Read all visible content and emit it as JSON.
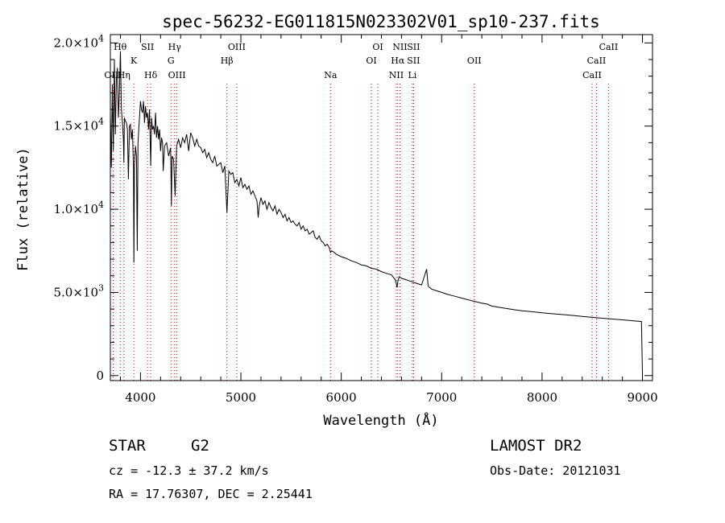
{
  "chart_data": {
    "type": "line",
    "title": "spec-56232-EG011815N023302V01_sp10-237.fits",
    "xlabel": "Wavelength (Å)",
    "ylabel": "Flux (relative)",
    "xlim": [
      3700,
      9100
    ],
    "ylim": [
      -300,
      20500
    ],
    "xticks": [
      {
        "value": 4000,
        "label": "4000"
      },
      {
        "value": 5000,
        "label": "5000"
      },
      {
        "value": 6000,
        "label": "6000"
      },
      {
        "value": 7000,
        "label": "7000"
      },
      {
        "value": 8000,
        "label": "8000"
      },
      {
        "value": 9000,
        "label": "9000"
      }
    ],
    "yticks": [
      {
        "value": 0,
        "label": "0",
        "exp": ""
      },
      {
        "value": 5000,
        "label": "5.0×10",
        "exp": "3"
      },
      {
        "value": 10000,
        "label": "1.0×10",
        "exp": "4"
      },
      {
        "value": 15000,
        "label": "1.5×10",
        "exp": "4"
      },
      {
        "value": 20000,
        "label": "2.0×10",
        "exp": "4"
      }
    ],
    "grid": false,
    "series": [
      {
        "x": [
          3700,
          3710,
          3720,
          3730,
          3740,
          3750,
          3760,
          3770,
          3780,
          3790,
          3800,
          3810,
          3820,
          3830,
          3835,
          3840,
          3850,
          3860,
          3870,
          3880,
          3890,
          3900,
          3910,
          3920,
          3930,
          3934,
          3940,
          3950,
          3960,
          3968,
          3975,
          3985,
          4000,
          4010,
          4020,
          4030,
          4040,
          4050,
          4060,
          4070,
          4080,
          4090,
          4102,
          4110,
          4120,
          4130,
          4140,
          4150,
          4160,
          4170,
          4180,
          4190,
          4200,
          4210,
          4220,
          4226,
          4240,
          4260,
          4280,
          4300,
          4308,
          4315,
          4330,
          4340,
          4345,
          4350,
          4360,
          4380,
          4400,
          4420,
          4440,
          4460,
          4480,
          4500,
          4520,
          4540,
          4560,
          4580,
          4600,
          4620,
          4640,
          4660,
          4680,
          4700,
          4720,
          4740,
          4760,
          4780,
          4800,
          4820,
          4840,
          4861,
          4880,
          4900,
          4920,
          4940,
          4960,
          4980,
          5000,
          5020,
          5040,
          5060,
          5080,
          5100,
          5120,
          5140,
          5160,
          5172,
          5183,
          5200,
          5220,
          5240,
          5260,
          5280,
          5300,
          5320,
          5340,
          5360,
          5380,
          5400,
          5420,
          5440,
          5460,
          5480,
          5500,
          5520,
          5540,
          5560,
          5580,
          5600,
          5620,
          5640,
          5660,
          5680,
          5700,
          5720,
          5740,
          5760,
          5780,
          5800,
          5820,
          5840,
          5860,
          5880,
          5893,
          5905,
          5920,
          5950,
          6000,
          6050,
          6100,
          6150,
          6200,
          6250,
          6300,
          6350,
          6400,
          6450,
          6500,
          6540,
          6556,
          6563,
          6570,
          6580,
          6600,
          6650,
          6700,
          6750,
          6800,
          6850,
          6865,
          6870,
          6880,
          6900,
          6950,
          7000,
          7050,
          7100,
          7150,
          7200,
          7250,
          7300,
          7350,
          7400,
          7450,
          7500,
          7600,
          7700,
          7800,
          7900,
          8000,
          8100,
          8200,
          8300,
          8400,
          8500,
          8600,
          8700,
          8800,
          8900,
          8990,
          9000
        ],
        "y": [
          15800,
          12500,
          17500,
          13500,
          19000,
          14500,
          17800,
          18500,
          15500,
          17000,
          19500,
          16000,
          15200,
          14200,
          12800,
          15500,
          15300,
          15200,
          14800,
          11800,
          15000,
          15100,
          14200,
          14800,
          12500,
          6800,
          12600,
          13800,
          13200,
          7500,
          14000,
          15000,
          16500,
          16000,
          15800,
          16500,
          15200,
          16200,
          15500,
          15800,
          14800,
          16000,
          12600,
          15500,
          14800,
          15000,
          14500,
          15800,
          14300,
          15000,
          14200,
          14800,
          13500,
          14300,
          14000,
          12300,
          13800,
          14000,
          13200,
          13700,
          10200,
          13200,
          13000,
          11500,
          10800,
          11800,
          13800,
          14200,
          13700,
          14300,
          14000,
          14500,
          13500,
          14600,
          14300,
          13800,
          14200,
          13800,
          13700,
          13400,
          13600,
          13100,
          13400,
          13000,
          12800,
          13200,
          12600,
          12700,
          12800,
          12200,
          12600,
          9800,
          12300,
          12100,
          12200,
          11600,
          11800,
          11400,
          11900,
          11300,
          11500,
          11200,
          11400,
          10900,
          11100,
          10800,
          10500,
          9500,
          10200,
          10700,
          10300,
          10500,
          10000,
          10400,
          10100,
          9900,
          10200,
          9700,
          10000,
          9800,
          9500,
          9700,
          9300,
          9500,
          9200,
          9300,
          9100,
          9000,
          9200,
          8800,
          9000,
          8700,
          8800,
          8500,
          8600,
          8700,
          8300,
          8200,
          8400,
          8100,
          8000,
          7800,
          7900,
          7700,
          7400,
          7500,
          7450,
          7300,
          7150,
          7050,
          6900,
          6800,
          6650,
          6600,
          6450,
          6400,
          6250,
          6150,
          6050,
          5750,
          5300,
          5650,
          5800,
          5950,
          5850,
          5750,
          5650,
          5550,
          5450,
          6400,
          5400,
          5350,
          5300,
          5200,
          5100,
          5000,
          4900,
          4820,
          4740,
          4660,
          4580,
          4500,
          4430,
          4360,
          4300,
          4180,
          4080,
          3980,
          3900,
          3840,
          3780,
          3720,
          3670,
          3620,
          3560,
          3500,
          3450,
          3400,
          3350,
          3300,
          3250,
          150
        ]
      }
    ],
    "lines": [
      {
        "label": "Hθ",
        "wave": 3798,
        "row": 0
      },
      {
        "label": "OIII",
        "wave": 3727,
        "row": 2
      },
      {
        "label": "Hη",
        "wave": 3835,
        "row": 2
      },
      {
        "label": "K",
        "wave": 3934,
        "row": 1
      },
      {
        "label": "SII",
        "wave": 4070,
        "row": 0
      },
      {
        "label": "Hδ",
        "wave": 4102,
        "row": 2
      },
      {
        "label": "Hγ",
        "wave": 4340,
        "row": 0
      },
      {
        "label": "G",
        "wave": 4304,
        "row": 1
      },
      {
        "label": "OIII",
        "wave": 4363,
        "row": 2
      },
      {
        "label": "OIII",
        "wave": 4959,
        "row": 0
      },
      {
        "label": "Hβ",
        "wave": 4861,
        "row": 1
      },
      {
        "label": "Na",
        "wave": 5893,
        "row": 2
      },
      {
        "label": "OI",
        "wave": 6364,
        "row": 0
      },
      {
        "label": "OI",
        "wave": 6300,
        "row": 1
      },
      {
        "label": "NII",
        "wave": 6584,
        "row": 0
      },
      {
        "label": "SII",
        "wave": 6720,
        "row": 0
      },
      {
        "label": "Hα",
        "wave": 6563,
        "row": 1
      },
      {
        "label": "SII",
        "wave": 6720,
        "row": 1
      },
      {
        "label": "NII",
        "wave": 6548,
        "row": 2
      },
      {
        "label": "Li",
        "wave": 6708,
        "row": 2
      },
      {
        "label": "OII",
        "wave": 7325,
        "row": 1
      },
      {
        "label": "CaII",
        "wave": 8662,
        "row": 0
      },
      {
        "label": "CaII",
        "wave": 8542,
        "row": 1
      },
      {
        "label": "CaII",
        "wave": 8498,
        "row": 2
      }
    ]
  },
  "info": {
    "class_label": "STAR",
    "subclass": "G2",
    "survey": "LAMOST DR2",
    "cz": "cz = -12.3 ± 37.2 km/s",
    "obs_date": "Obs-Date: 20121031",
    "coords": "RA =  17.76307, DEC =   2.25441"
  },
  "colors": {
    "line_markers": "#cc0000",
    "ink": "#000000",
    "background": "#ffffff"
  }
}
